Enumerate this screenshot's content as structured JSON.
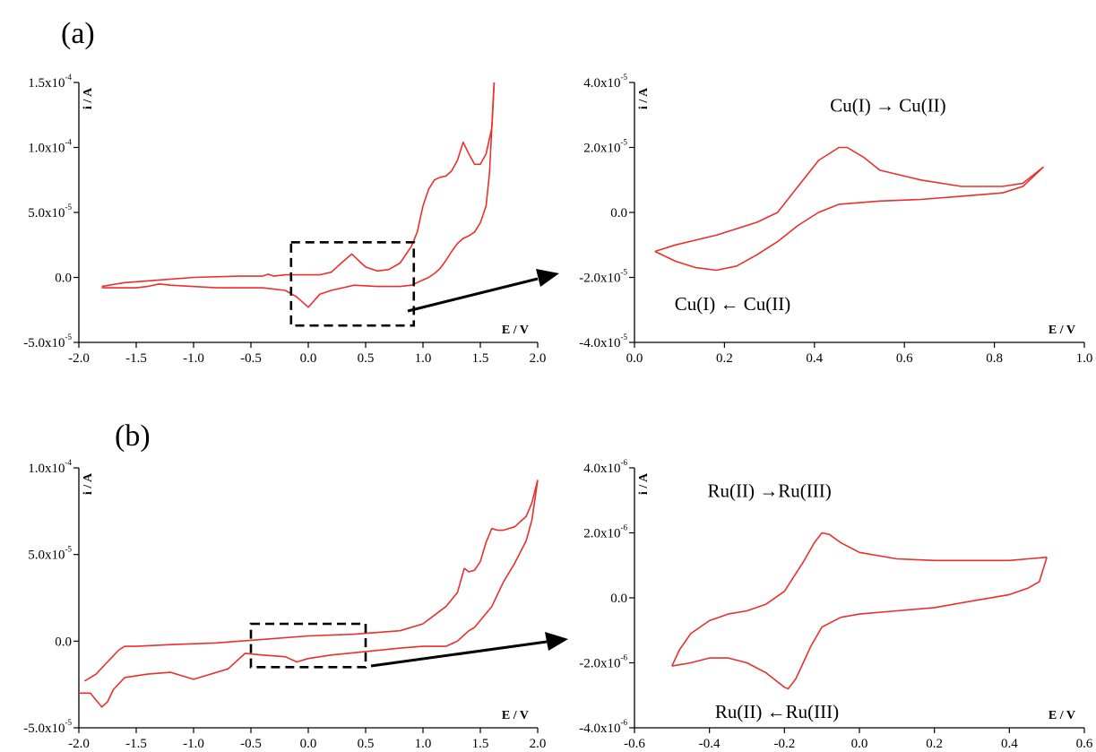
{
  "panels": [
    {
      "id": "a",
      "label": "(a)"
    },
    {
      "id": "b",
      "label": "(b)"
    }
  ],
  "chart_data": [
    {
      "id": "a-full",
      "type": "line",
      "title": "",
      "xlabel": "E / V",
      "ylabel": "i / A",
      "xlim": [
        -2.0,
        2.0
      ],
      "ylim": [
        -5e-05,
        0.00015
      ],
      "x_ticks": [
        "-2.0",
        "-1.5",
        "-1.0",
        "-0.5",
        "0.0",
        "0.5",
        "1.0",
        "1.5",
        "2.0"
      ],
      "y_ticks": [
        {
          "value": -5e-05,
          "mant": "-5.0x10",
          "exp": "-5"
        },
        {
          "value": 0,
          "mant": "0.0",
          "exp": ""
        },
        {
          "value": 5e-05,
          "mant": "5.0x10",
          "exp": "-5"
        },
        {
          "value": 0.0001,
          "mant": "1.0x10",
          "exp": "-4"
        },
        {
          "value": 0.00015,
          "mant": "1.5x10",
          "exp": "-4"
        }
      ],
      "grid": false,
      "zoom_box": {
        "x": [
          -0.15,
          0.92
        ],
        "y": [
          -3.7e-05,
          2.7e-05
        ]
      },
      "series": [
        {
          "x": [
            -1.8,
            -1.6,
            -1.3,
            -1.0,
            -0.6,
            -0.4,
            -0.35,
            -0.3,
            -0.2,
            0.0,
            0.1,
            0.2,
            0.3,
            0.38,
            0.45,
            0.5,
            0.6,
            0.7,
            0.8,
            0.9,
            0.95,
            1.0,
            1.05,
            1.1,
            1.15,
            1.2,
            1.25,
            1.3,
            1.35,
            1.4,
            1.45,
            1.5,
            1.55,
            1.6,
            1.62
          ],
          "y": [
            -7e-06,
            -4e-06,
            -2e-06,
            0,
            1e-06,
            1e-06,
            2.5e-06,
            1e-06,
            2e-06,
            2e-06,
            2e-06,
            4e-06,
            1.2e-05,
            1.8e-05,
            1.2e-05,
            8e-06,
            5e-06,
            6e-06,
            1.1e-05,
            2.4e-05,
            3.5e-05,
            5.5e-05,
            6.8e-05,
            7.5e-05,
            7.7e-05,
            7.8e-05,
            8.2e-05,
            9e-05,
            0.000104,
            9.5e-05,
            8.7e-05,
            8.7e-05,
            9.5e-05,
            0.000115,
            0.00015
          ]
        },
        {
          "x": [
            1.62,
            1.58,
            1.55,
            1.5,
            1.45,
            1.4,
            1.35,
            1.3,
            1.25,
            1.2,
            1.15,
            1.1,
            1.05,
            1.0,
            0.95,
            0.9,
            0.8,
            0.6,
            0.4,
            0.3,
            0.2,
            0.1,
            0.05,
            0.0,
            -0.1,
            -0.2,
            -0.4,
            -0.8,
            -1.2,
            -1.3,
            -1.4,
            -1.5,
            -1.6,
            -1.8
          ],
          "y": [
            0.00015,
            8e-05,
            5.5e-05,
            4.2e-05,
            3.5e-05,
            3.2e-05,
            3e-05,
            2.6e-05,
            2e-05,
            1.3e-05,
            7e-06,
            3e-06,
            0,
            -2e-06,
            -4e-06,
            -6e-06,
            -7e-06,
            -7e-06,
            -6e-06,
            -8e-06,
            -1e-05,
            -1.3e-05,
            -1.8e-05,
            -2.3e-05,
            -1.5e-05,
            -1e-05,
            -8e-06,
            -8e-06,
            -6e-06,
            -5e-06,
            -7e-06,
            -8e-06,
            -8e-06,
            -8e-06
          ]
        }
      ]
    },
    {
      "id": "a-zoom",
      "type": "line",
      "title": "",
      "xlabel": "E / V",
      "ylabel": "i / A",
      "xlim": [
        -0.1,
        1.0
      ],
      "ylim": [
        -4e-05,
        4e-05
      ],
      "x_ticks": [
        "0.0",
        "0.2",
        "0.4",
        "0.6",
        "0.8",
        "1.0"
      ],
      "y_ticks": [
        {
          "value": -4e-05,
          "mant": "-4.0x10",
          "exp": "-5"
        },
        {
          "value": -2e-05,
          "mant": "-2.0x10",
          "exp": "-5"
        },
        {
          "value": 0,
          "mant": "0.0",
          "exp": ""
        },
        {
          "value": 2e-05,
          "mant": "2.0x10",
          "exp": "-5"
        },
        {
          "value": 4e-05,
          "mant": "4.0x10",
          "exp": "-5"
        }
      ],
      "grid": false,
      "annotations": [
        {
          "text": "Cu(I) → Cu(II)",
          "x": 0.52,
          "y": 3.1e-05
        },
        {
          "text": "Cu(I) ← Cu(II)",
          "x": 0.14,
          "y": -3e-05
        }
      ],
      "series": [
        {
          "x": [
            -0.05,
            0.0,
            0.1,
            0.2,
            0.25,
            0.3,
            0.35,
            0.4,
            0.42,
            0.46,
            0.5,
            0.6,
            0.7,
            0.8,
            0.85,
            0.9
          ],
          "y": [
            -1.2e-05,
            -1e-05,
            -7e-06,
            -3e-06,
            0,
            8e-06,
            1.6e-05,
            2e-05,
            2e-05,
            1.7e-05,
            1.3e-05,
            1e-05,
            8e-06,
            8e-06,
            9e-06,
            1.4e-05
          ]
        },
        {
          "x": [
            0.9,
            0.85,
            0.8,
            0.7,
            0.6,
            0.5,
            0.4,
            0.35,
            0.3,
            0.25,
            0.2,
            0.15,
            0.1,
            0.05,
            0.0,
            -0.05
          ],
          "y": [
            1.4e-05,
            8e-06,
            6e-06,
            5e-06,
            4e-06,
            3.5e-06,
            2.5e-06,
            0,
            -4e-06,
            -9e-06,
            -1.3e-05,
            -1.65e-05,
            -1.78e-05,
            -1.7e-05,
            -1.5e-05,
            -1.2e-05
          ]
        }
      ]
    },
    {
      "id": "b-full",
      "type": "line",
      "title": "",
      "xlabel": "E / V",
      "ylabel": "i / A",
      "xlim": [
        -2.0,
        2.0
      ],
      "ylim": [
        -5e-05,
        0.0001
      ],
      "x_ticks": [
        "-2.0",
        "-1.5",
        "-1.0",
        "-0.5",
        "0.0",
        "0.5",
        "1.0",
        "1.5",
        "2.0"
      ],
      "y_ticks": [
        {
          "value": -5e-05,
          "mant": "-5.0x10",
          "exp": "-5"
        },
        {
          "value": 0,
          "mant": "0.0",
          "exp": ""
        },
        {
          "value": 5e-05,
          "mant": "5.0x10",
          "exp": "-5"
        },
        {
          "value": 0.0001,
          "mant": "1.0x10",
          "exp": "-4"
        }
      ],
      "grid": false,
      "zoom_box": {
        "x": [
          -0.5,
          0.5
        ],
        "y": [
          -1.5e-05,
          1e-05
        ]
      },
      "series": [
        {
          "x": [
            -1.95,
            -1.85,
            -1.75,
            -1.65,
            -1.6,
            -1.5,
            -1.2,
            -0.8,
            -0.4,
            0.0,
            0.4,
            0.8,
            1.0,
            1.1,
            1.2,
            1.3,
            1.36,
            1.4,
            1.45,
            1.5,
            1.55,
            1.6,
            1.65,
            1.7,
            1.8,
            1.9,
            1.95,
            2.0
          ],
          "y": [
            -2.3e-05,
            -1.9e-05,
            -1.2e-05,
            -5e-06,
            -3e-06,
            -3e-06,
            -2e-06,
            -1e-06,
            1e-06,
            3e-06,
            4e-06,
            6e-06,
            1e-05,
            1.5e-05,
            2e-05,
            2.8e-05,
            4.2e-05,
            4e-05,
            4.1e-05,
            4.6e-05,
            5.7e-05,
            6.5e-05,
            6.4e-05,
            6.4e-05,
            6.6e-05,
            7.2e-05,
            8e-05,
            9.3e-05
          ]
        },
        {
          "x": [
            2.0,
            1.95,
            1.9,
            1.8,
            1.7,
            1.6,
            1.5,
            1.45,
            1.4,
            1.35,
            1.3,
            1.2,
            1.1,
            1.0,
            0.8,
            0.5,
            0.2,
            0.0,
            -0.1,
            -0.2,
            -0.4,
            -0.55,
            -0.7,
            -0.9,
            -1.0,
            -1.2,
            -1.4,
            -1.6,
            -1.7,
            -1.75,
            -1.8,
            -1.85,
            -1.9,
            -2.0
          ],
          "y": [
            9.3e-05,
            7e-05,
            5.8e-05,
            4.5e-05,
            3.4e-05,
            2e-05,
            1.2e-05,
            8e-06,
            6e-06,
            3e-06,
            0,
            -3e-06,
            -3e-06,
            -3e-06,
            -4e-06,
            -6e-06,
            -8e-06,
            -1e-05,
            -1.2e-05,
            -9e-06,
            -8e-06,
            -7e-06,
            -1.6e-05,
            -2e-05,
            -2.2e-05,
            -1.8e-05,
            -1.9e-05,
            -2.1e-05,
            -2.8e-05,
            -3.5e-05,
            -3.8e-05,
            -3.4e-05,
            -3e-05,
            -3e-05
          ]
        }
      ]
    },
    {
      "id": "b-zoom",
      "type": "line",
      "title": "",
      "xlabel": "E / V",
      "ylabel": "i / A",
      "xlim": [
        -0.6,
        0.6
      ],
      "ylim": [
        -4e-06,
        4e-06
      ],
      "x_ticks": [
        "-0.6",
        "-0.4",
        "-0.2",
        "0.0",
        "0.2",
        "0.4",
        "0.6"
      ],
      "y_ticks": [
        {
          "value": -4e-06,
          "mant": "-4.0x10",
          "exp": "-6"
        },
        {
          "value": -2e-06,
          "mant": "-2.0x10",
          "exp": "-6"
        },
        {
          "value": 0,
          "mant": "0.0",
          "exp": ""
        },
        {
          "value": 2e-06,
          "mant": "2.0x10",
          "exp": "-6"
        },
        {
          "value": 4e-06,
          "mant": "4.0x10",
          "exp": "-6"
        }
      ],
      "grid": false,
      "annotations": [
        {
          "text": "Ru(II) →Ru(III)",
          "x": -0.24,
          "y": 3.1e-06
        },
        {
          "text": "Ru(II) ←Ru(III)",
          "x": -0.22,
          "y": -3.7e-06
        }
      ],
      "series": [
        {
          "x": [
            -0.5,
            -0.48,
            -0.45,
            -0.4,
            -0.35,
            -0.3,
            -0.25,
            -0.2,
            -0.15,
            -0.12,
            -0.1,
            -0.08,
            -0.05,
            0.0,
            0.1,
            0.2,
            0.3,
            0.4,
            0.45,
            0.5
          ],
          "y": [
            -2.1e-06,
            -1.6e-06,
            -1.1e-06,
            -7e-07,
            -5e-07,
            -4e-07,
            -2e-07,
            2e-07,
            1.1e-06,
            1.7e-06,
            2e-06,
            1.95e-06,
            1.7e-06,
            1.4e-06,
            1.2e-06,
            1.15e-06,
            1.15e-06,
            1.15e-06,
            1.2e-06,
            1.25e-06
          ]
        },
        {
          "x": [
            0.5,
            0.48,
            0.45,
            0.4,
            0.3,
            0.2,
            0.1,
            0.0,
            -0.05,
            -0.1,
            -0.13,
            -0.15,
            -0.17,
            -0.19,
            -0.2,
            -0.25,
            -0.3,
            -0.35,
            -0.4,
            -0.45,
            -0.5
          ],
          "y": [
            1.25e-06,
            5e-07,
            3e-07,
            1e-07,
            -1e-07,
            -3e-07,
            -4e-07,
            -5e-07,
            -6e-07,
            -9e-07,
            -1.5e-06,
            -2e-06,
            -2.5e-06,
            -2.8e-06,
            -2.75e-06,
            -2.3e-06,
            -2e-06,
            -1.85e-06,
            -1.85e-06,
            -2e-06,
            -2.1e-06
          ]
        }
      ]
    }
  ]
}
